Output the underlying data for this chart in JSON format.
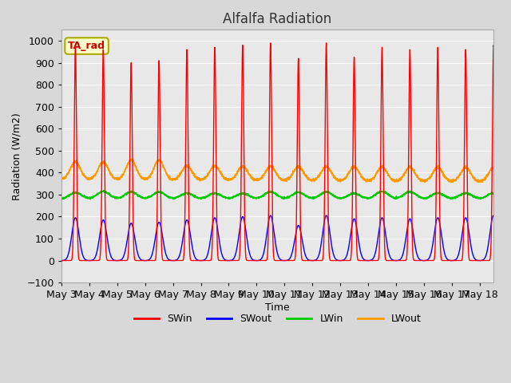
{
  "title": "Alfalfa Radiation",
  "xlabel": "Time",
  "ylabel": "Radiation (W/m2)",
  "ylim": [
    -100,
    1050
  ],
  "annotation": "TA_rad",
  "legend_entries": [
    "SWin",
    "SWout",
    "LWin",
    "LWout"
  ],
  "legend_colors": [
    "#ff0000",
    "#0000ff",
    "#00cc00",
    "#ff9900"
  ],
  "tick_labels": [
    "May 3",
    "May 4",
    "May 5",
    "May 6",
    "May 7",
    "May 8",
    "May 9",
    "May 10",
    "May 11",
    "May 12",
    "May 13",
    "May 14",
    "May 15",
    "May 16",
    "May 17",
    "May 18"
  ],
  "background_color": "#d8d8d8",
  "plot_bg_color": "#e8e8e8",
  "grid_color": "#ffffff",
  "SWin_peak": [
    980,
    960,
    900,
    910,
    960,
    970,
    980,
    990,
    920,
    990,
    925,
    970,
    960,
    970,
    960,
    980
  ],
  "SWout_peak": [
    195,
    185,
    170,
    175,
    185,
    195,
    200,
    205,
    160,
    205,
    190,
    195,
    190,
    195,
    195,
    205
  ],
  "LWin_base": 280,
  "LWout_base": 370
}
